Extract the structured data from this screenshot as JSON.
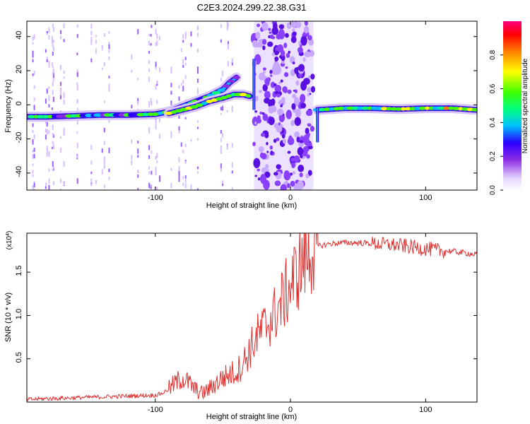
{
  "title": "C2E3.2024.299.22.38.G31",
  "colors": {
    "snr_line": "#e03030",
    "track_low": "#7a2cff",
    "noise": "#b890ff",
    "axis": "#000000",
    "background": "#ffffff"
  },
  "chart_data": [
    {
      "type": "heatmap",
      "xlabel": "Height of straight line (km)",
      "ylabel": "Frequency (Hz)",
      "xlim": [
        -195,
        138
      ],
      "ylim": [
        -50,
        49
      ],
      "x_ticks": [
        -100,
        0,
        100
      ],
      "x_tick_labels": [
        "-100",
        "0",
        "100"
      ],
      "y_ticks": [
        -40,
        -20,
        0,
        20,
        40
      ],
      "y_tick_labels": [
        "-40",
        "-20",
        "0",
        "20",
        "40"
      ],
      "colorbar": {
        "label": "Normalized spectral amplitude",
        "range": [
          0,
          1
        ],
        "ticks": [
          0.0,
          0.2,
          0.4,
          0.6,
          0.8
        ],
        "tick_labels": [
          "0.0",
          "0.2",
          "0.4",
          "0.6",
          "0.8"
        ]
      },
      "noise_band": [
        -27,
        17
      ],
      "tracks": [
        {
          "points": [
            [
              -195,
              -7
            ],
            [
              -180,
              -7
            ],
            [
              -160,
              -6.5
            ],
            [
              -140,
              -6
            ],
            [
              -120,
              -6
            ],
            [
              -100,
              -5.5
            ],
            [
              -90,
              -4
            ],
            [
              -80,
              -1
            ],
            [
              -70,
              2
            ],
            [
              -60,
              5
            ],
            [
              -50,
              9
            ],
            [
              -45,
              13
            ],
            [
              -40,
              16
            ]
          ],
          "amplitude": 0.35
        },
        {
          "points": [
            [
              -90,
              -5
            ],
            [
              -80,
              -3
            ],
            [
              -70,
              -1
            ],
            [
              -60,
              2
            ],
            [
              -50,
              4
            ],
            [
              -42,
              6
            ],
            [
              -35,
              6
            ],
            [
              -30,
              5
            ]
          ],
          "amplitude": 0.5
        },
        {
          "points": [
            [
              20,
              -3
            ],
            [
              40,
              -2
            ],
            [
              60,
              -2
            ],
            [
              80,
              -2.5
            ],
            [
              100,
              -2
            ],
            [
              120,
              -2
            ],
            [
              138,
              -3
            ]
          ],
          "amplitude": 0.55
        }
      ]
    },
    {
      "type": "line",
      "xlabel": "Height of straight line (km)",
      "ylabel": "SNR (10 * v/v)",
      "y_multiplier_label": "(x10",
      "y_multiplier_exp": "4",
      "y_multiplier_suffix": ")",
      "xlim": [
        -195,
        138
      ],
      "ylim": [
        0,
        19500
      ],
      "x_ticks": [
        -100,
        0,
        100
      ],
      "x_tick_labels": [
        "-100",
        "0",
        "100"
      ],
      "y_ticks": [
        5000,
        10000,
        15000
      ],
      "y_tick_labels": [
        "0.5",
        "1.0",
        "1.5"
      ],
      "series": [
        {
          "x": [
            -195,
            -180,
            -160,
            -140,
            -120,
            -100,
            -95,
            -90,
            -85,
            -80,
            -75,
            -70,
            -65,
            -60,
            -55,
            -50,
            -45,
            -40,
            -35,
            -30,
            -25,
            -20,
            -15,
            -10,
            -5,
            0,
            5,
            10,
            15,
            20,
            30,
            40,
            50,
            60,
            70,
            80,
            90,
            95,
            100,
            105,
            110,
            120,
            130,
            138
          ],
          "y": [
            300,
            400,
            500,
            600,
            700,
            800,
            1000,
            1500,
            2200,
            2800,
            2200,
            1400,
            1000,
            1500,
            2200,
            2800,
            3200,
            3500,
            4500,
            6000,
            7500,
            8500,
            9500,
            10500,
            12000,
            13500,
            15000,
            16500,
            17500,
            18000,
            18300,
            18400,
            18400,
            18300,
            18200,
            18100,
            17900,
            17800,
            17700,
            17600,
            17500,
            17400,
            17200,
            17000
          ]
        }
      ]
    }
  ]
}
